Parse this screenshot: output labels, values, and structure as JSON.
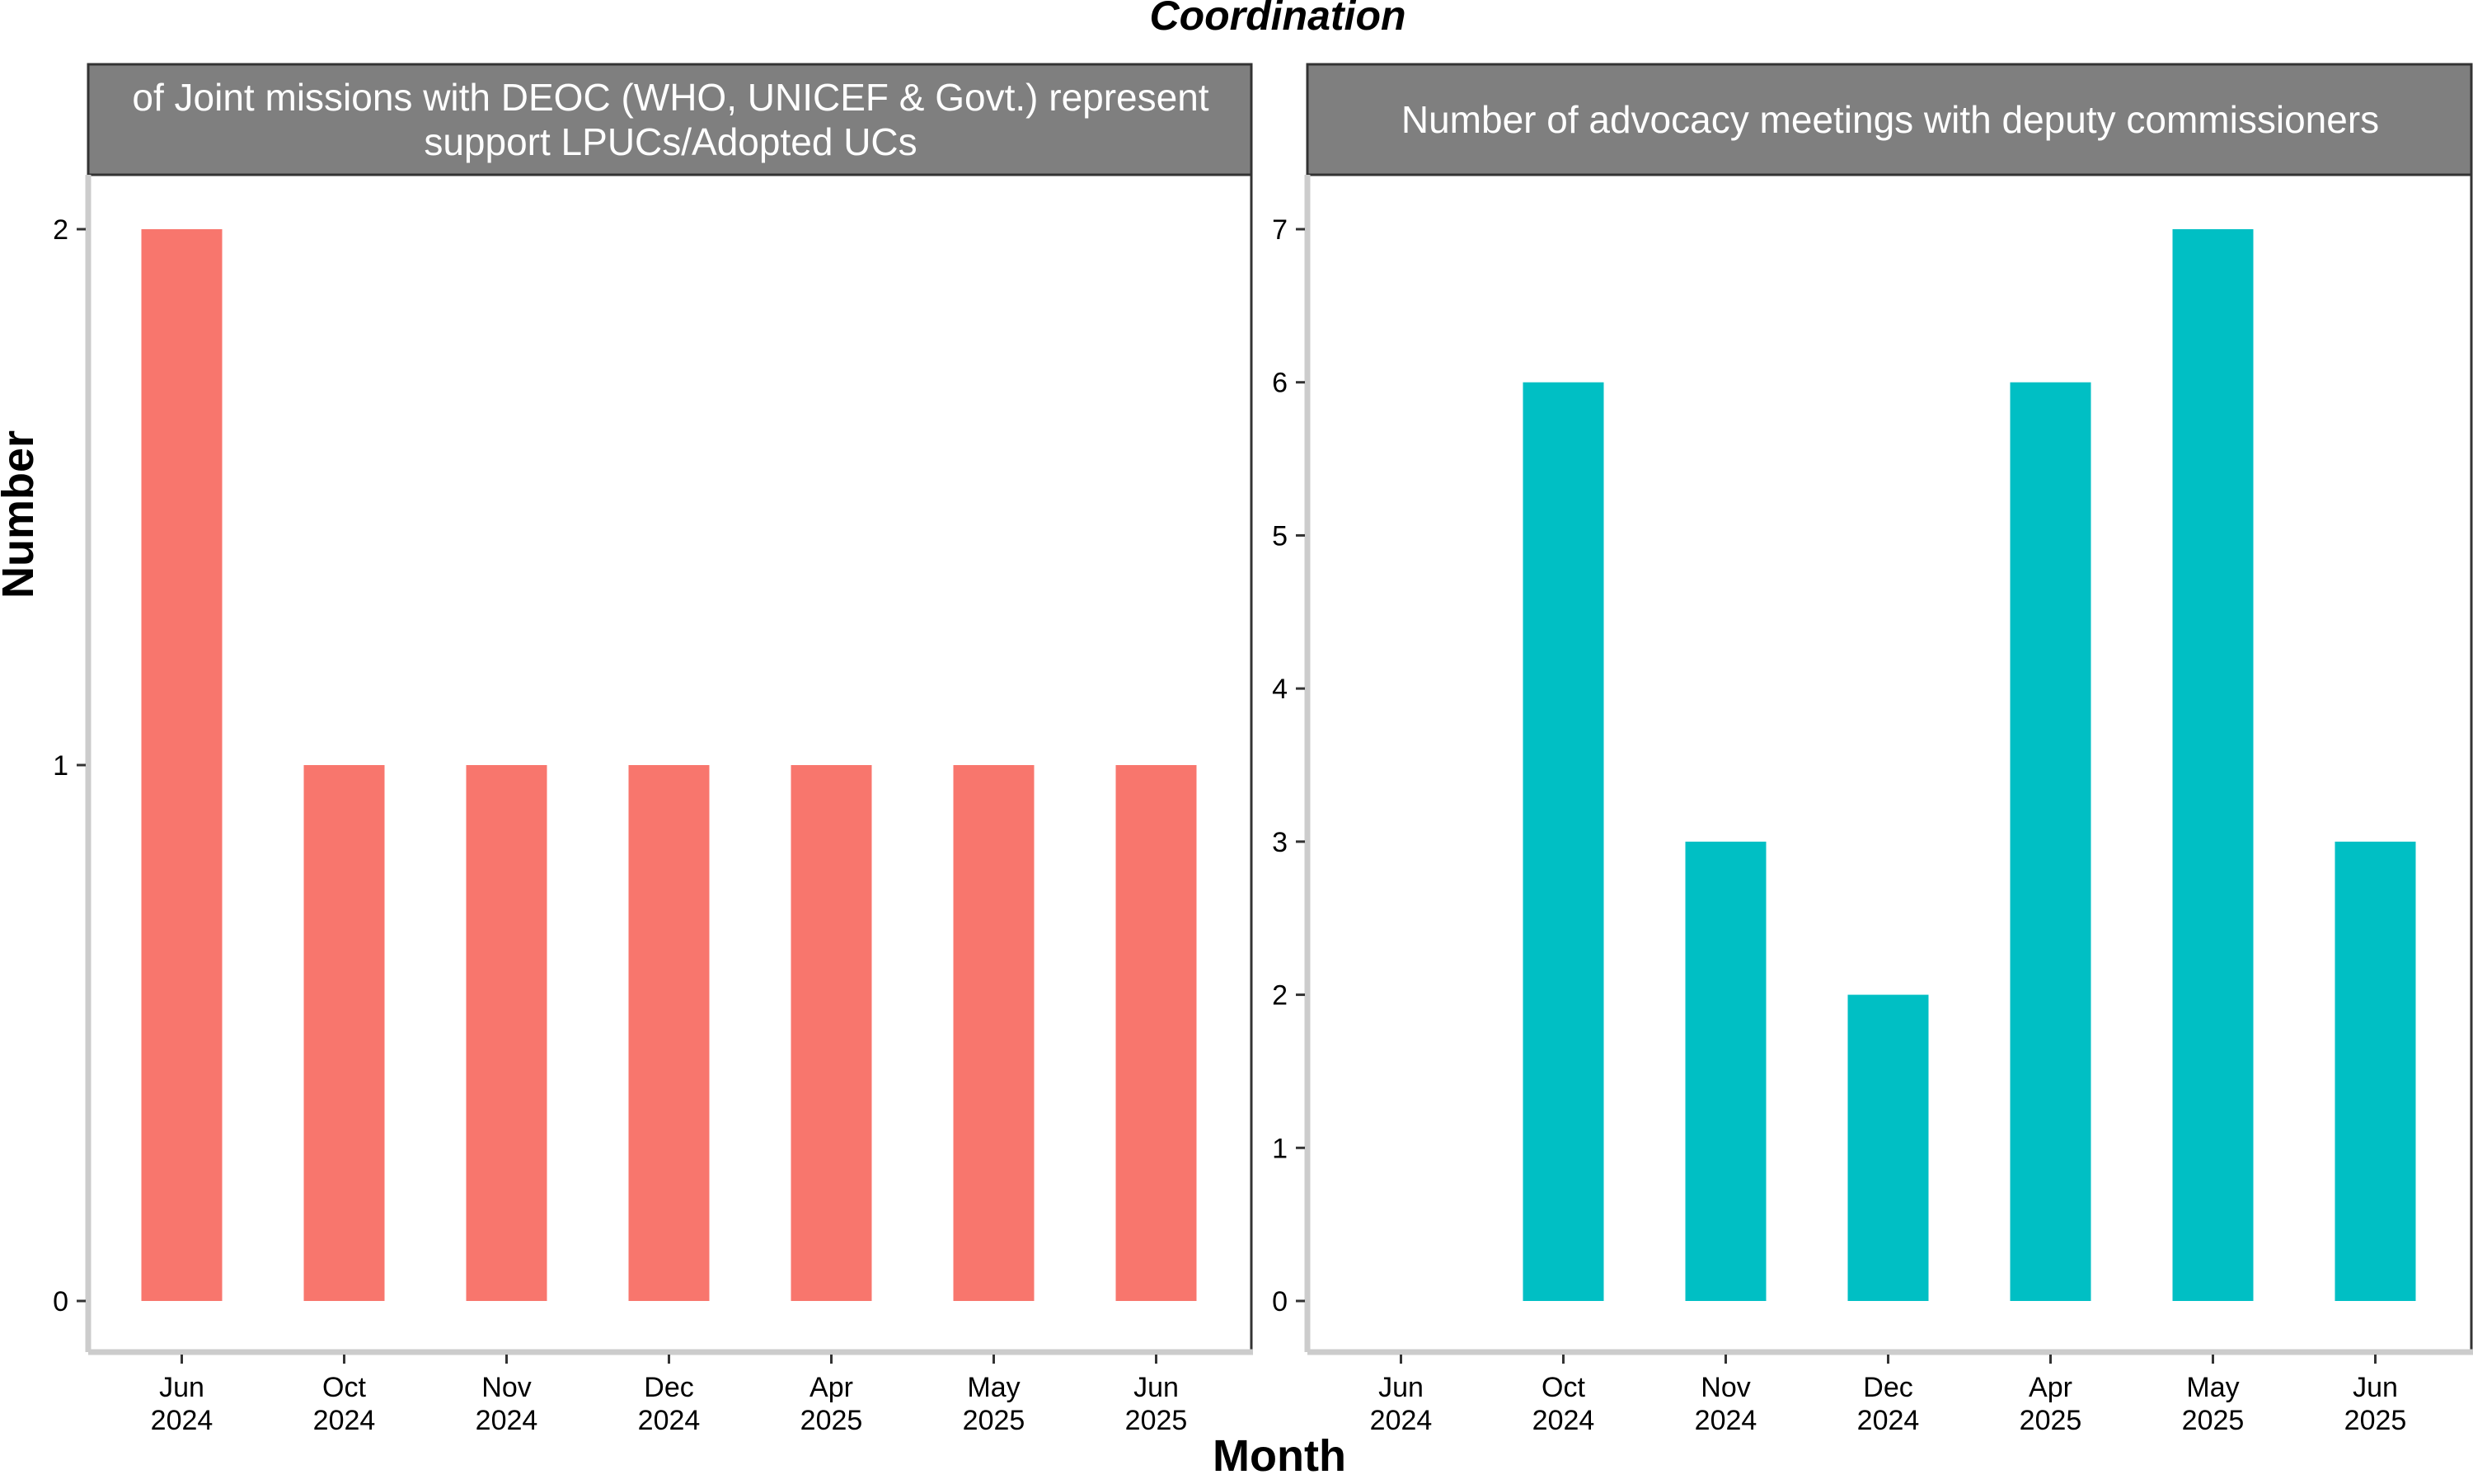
{
  "chart_data": {
    "type": "bar",
    "title": "Coordination",
    "xlabel": "Month",
    "ylabel": "Number",
    "legend": "none",
    "grid": false,
    "categories": [
      "Jun\n2024",
      "Oct\n2024",
      "Nov\n2024",
      "Dec\n2024",
      "Apr\n2025",
      "May\n2025",
      "Jun\n2025"
    ],
    "panels": [
      {
        "title_lines": [
          "of Joint missions with DEOC (WHO, UNICEF & Govt.) represent",
          "support LPUCs/Adopted UCs"
        ],
        "color": "#F8766D",
        "values": [
          2,
          1,
          1,
          1,
          1,
          1,
          1
        ],
        "ylim": [
          0,
          2
        ],
        "yticks": [
          0,
          1,
          2
        ]
      },
      {
        "title_lines": [
          "Number of advocacy meetings with deputy commissioners"
        ],
        "color": "#00BFC4",
        "values": [
          null,
          6,
          3,
          2,
          6,
          7,
          3
        ],
        "ylim": [
          0,
          7
        ],
        "yticks": [
          0,
          1,
          2,
          3,
          4,
          5,
          6,
          7
        ]
      }
    ]
  }
}
